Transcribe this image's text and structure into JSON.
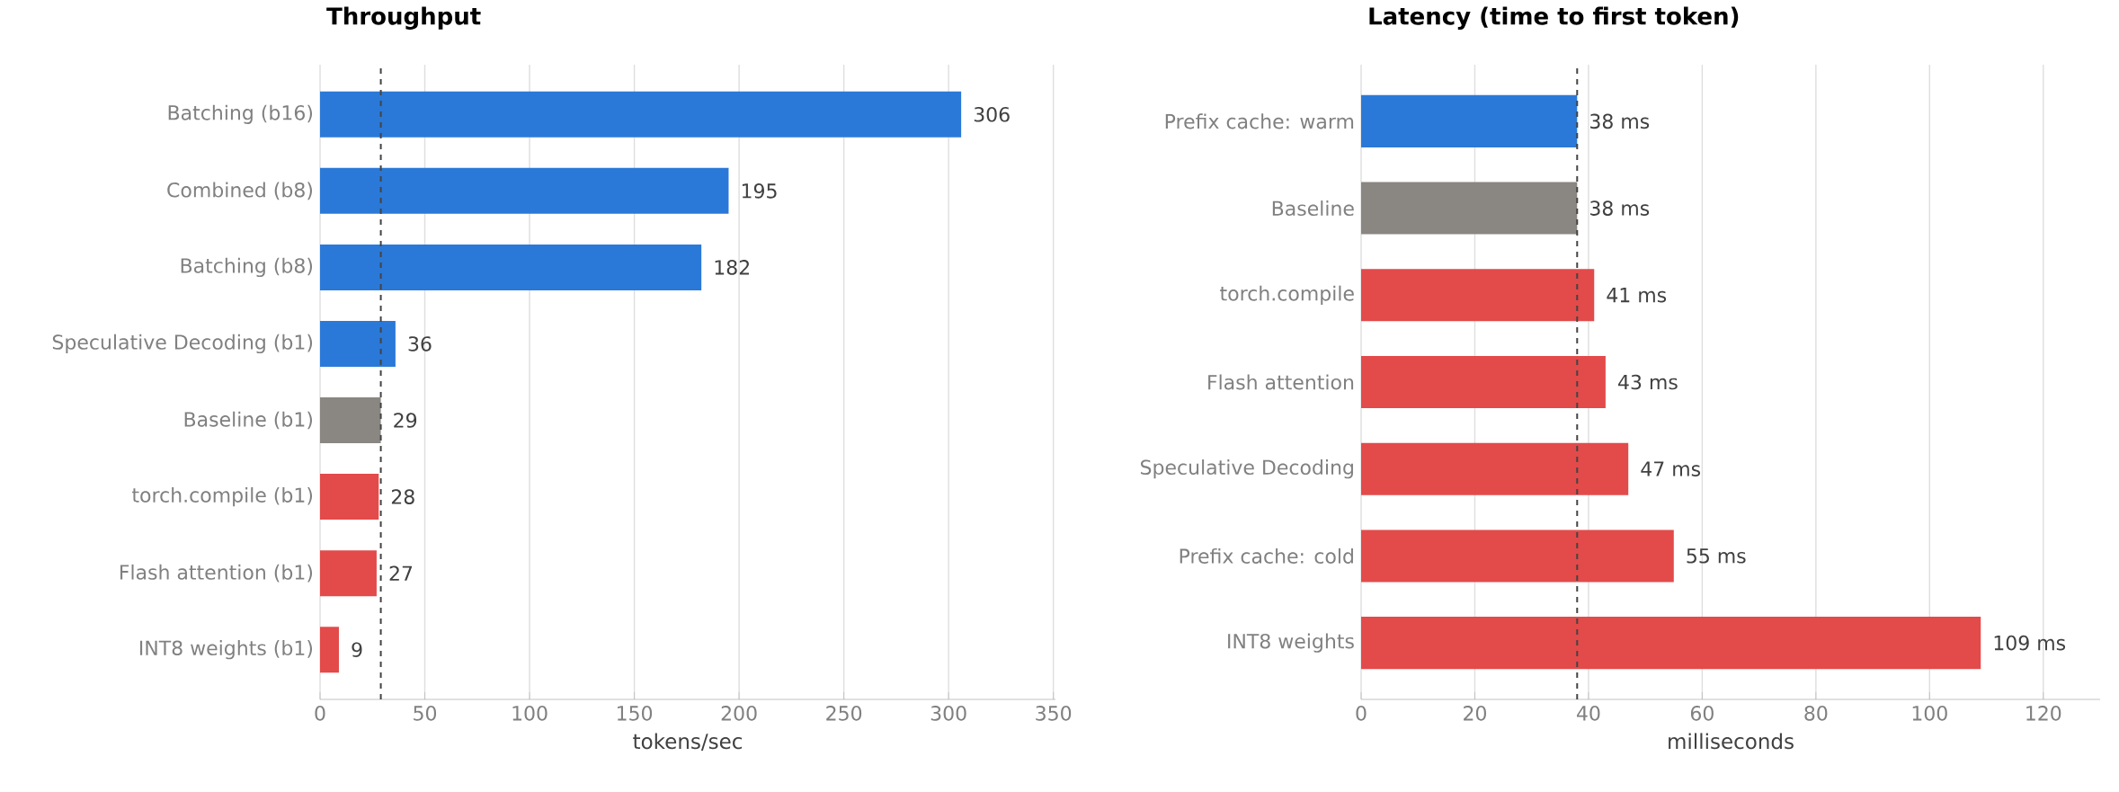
{
  "chart_data": [
    {
      "type": "bar",
      "orientation": "horizontal",
      "title": "Throughput",
      "xlabel": "tokens/sec",
      "categories": [
        "Batching (b16)",
        "Combined (b8)",
        "Batching (b8)",
        "Speculative Decoding (b1)",
        "Baseline (b1)",
        "torch.compile (b1)",
        "Flash attention (b1)",
        "INT8 weights (b1)"
      ],
      "values": [
        306,
        195,
        182,
        36,
        29,
        28,
        27,
        9
      ],
      "colors": [
        "#2a79d8",
        "#2a79d8",
        "#2a79d8",
        "#2a79d8",
        "#8a8782",
        "#e34a4a",
        "#e34a4a",
        "#e34a4a"
      ],
      "xlim": [
        0,
        351
      ],
      "xticks": [
        0,
        50,
        100,
        150,
        200,
        250,
        300,
        350
      ],
      "grid": "x",
      "data_labels": true,
      "ref_lines": [
        {
          "axis": "x",
          "value": 29,
          "color": "#444444",
          "line_style": "dashed"
        }
      ]
    },
    {
      "type": "bar",
      "orientation": "horizontal",
      "title": "Latency (time to first token)",
      "xlabel": "milliseconds",
      "categories": [
        "Prefix cache: warm",
        "Baseline",
        "torch.compile",
        "Flash attention",
        "Speculative Decoding",
        "Prefix cache: cold",
        "INT8 weights"
      ],
      "values": [
        38,
        38,
        41,
        43,
        47,
        55,
        109
      ],
      "value_labels": [
        "38 ms",
        "38 ms",
        "41 ms",
        "43 ms",
        "47 ms",
        "55 ms",
        "109 ms"
      ],
      "colors": [
        "#2a79d8",
        "#8a8782",
        "#e34a4a",
        "#e34a4a",
        "#e34a4a",
        "#e34a4a",
        "#e34a4a"
      ],
      "xlim": [
        0,
        130
      ],
      "xticks": [
        0,
        20,
        40,
        60,
        80,
        100,
        120
      ],
      "grid": "x",
      "ref_lines": [
        {
          "axis": "x",
          "value": 38,
          "color": "#444444",
          "line_style": "dashed"
        }
      ]
    }
  ]
}
